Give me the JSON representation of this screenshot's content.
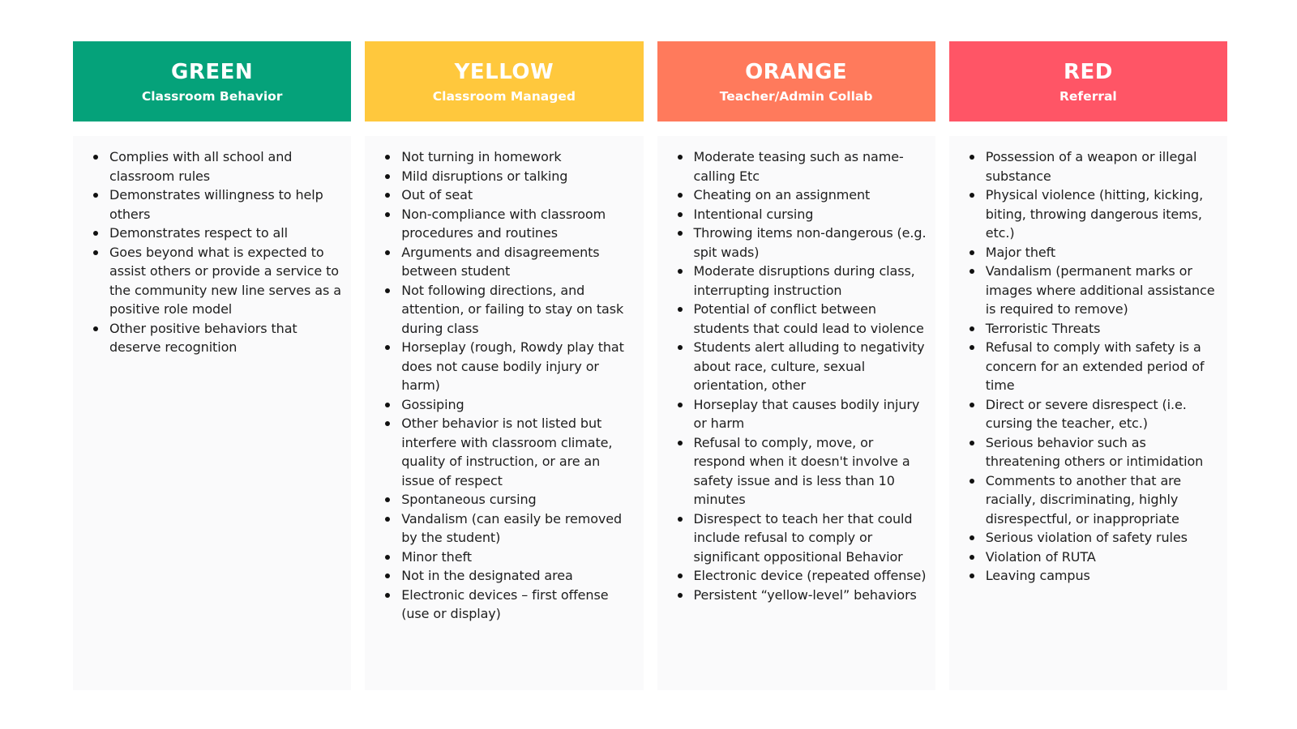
{
  "columns": [
    {
      "title": "GREEN",
      "subtitle": "Classroom Behavior",
      "color": "#05a27a",
      "items": [
        "Complies with all school and classroom rules",
        "Demonstrates willingness to help others",
        "Demonstrates respect to all",
        "Goes beyond what is expected to assist others or provide a service to the community new line serves as a positive role model",
        "Other positive behaviors that deserve recognition"
      ]
    },
    {
      "title": "YELLOW",
      "subtitle": "Classroom Managed",
      "color": "#ffc83d",
      "items": [
        "Not turning in homework",
        "Mild disruptions or talking",
        "Out of seat",
        "Non-compliance with classroom procedures and routines",
        "Arguments and disagreements between student",
        "Not following directions, and attention, or failing to stay on task during class",
        "Horseplay (rough, Rowdy play that does not cause bodily injury or harm)",
        "Gossiping",
        "Other behavior is not listed but interfere with classroom climate, quality of instruction, or are an issue of respect",
        "Spontaneous cursing",
        "Vandalism (can easily be removed by the student)",
        "Minor theft",
        "Not in the designated area",
        "Electronic devices – first offense (use or display)"
      ]
    },
    {
      "title": "ORANGE",
      "subtitle": "Teacher/Admin Collab",
      "color": "#ff7a5c",
      "items": [
        "Moderate teasing such as name-calling Etc",
        "Cheating on an assignment",
        "Intentional cursing",
        "Throwing items non-dangerous (e.g. spit wads)",
        "Moderate disruptions during class, interrupting instruction",
        "Potential of conflict between students that could lead to violence",
        "Students alert alluding to negativity about race, culture, sexual orientation, other",
        "Horseplay that causes bodily injury or harm",
        "Refusal to comply, move, or respond when it doesn't involve a safety issue and is less than 10 minutes",
        "Disrespect to teach her that could include refusal to comply or significant oppositional Behavior",
        "Electronic device (repeated offense)",
        "Persistent “yellow-level” behaviors"
      ]
    },
    {
      "title": "RED",
      "subtitle": "Referral",
      "color": "#ff5566",
      "items": [
        "Possession of a weapon or illegal substance",
        "Physical violence (hitting, kicking, biting, throwing dangerous items, etc.)",
        "Major theft",
        "Vandalism (permanent marks or images where additional assistance is required to remove)",
        "Terroristic Threats",
        "Refusal to comply with safety is a concern for an extended period of time",
        "Direct or severe disrespect (i.e. cursing the teacher, etc.)",
        "Serious behavior such as threatening others or intimidation",
        "Comments to another that are racially, discriminating, highly disrespectful, or inappropriate",
        "Serious violation of safety rules",
        "Violation of RUTA",
        "Leaving campus"
      ]
    }
  ]
}
